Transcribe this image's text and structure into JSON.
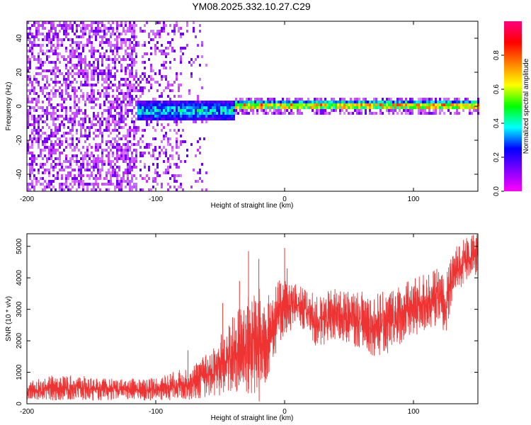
{
  "title": "YM08.2025.332.10.27.C29",
  "chart_data": [
    {
      "type": "heatmap",
      "xlabel": "Height of straight line (km)",
      "ylabel": "Frequency (Hz)",
      "xlim": [
        -200,
        150
      ],
      "ylim": [
        -50,
        50
      ],
      "xticks": [
        -200,
        -100,
        0,
        100
      ],
      "xtick_labels": [
        "-200",
        "-100",
        "0",
        "100"
      ],
      "yticks": [
        -40,
        -20,
        0,
        20,
        40
      ],
      "ytick_labels": [
        "-40",
        "-20",
        "0",
        "20",
        "40"
      ],
      "colorbar": {
        "label": "Normalized spectral amplitude",
        "range": [
          0,
          1
        ],
        "ticks": [
          0,
          0.2,
          0.4,
          0.6,
          0.8
        ],
        "tick_labels": [
          "0.0",
          "0.2",
          "0.4",
          "0.6",
          "0.8"
        ],
        "colors": [
          "#ff00ff",
          "#8000ff",
          "#0000ff",
          "#00ffff",
          "#00ff00",
          "#ffff00",
          "#ff8000",
          "#ff0000",
          "#ff0080"
        ]
      },
      "description_regions": [
        {
          "x_range": [
            -200,
            -70
          ],
          "freq_range": [
            -50,
            50
          ],
          "amplitude": 0.05
        },
        {
          "x_range": [
            -115,
            -40
          ],
          "freq_range": [
            -10,
            6
          ],
          "amplitude": 0.35
        },
        {
          "x_range": [
            -40,
            150
          ],
          "freq_range": [
            -2,
            4
          ],
          "amplitude": 0.8
        }
      ]
    },
    {
      "type": "line",
      "xlabel": "Height of straight line (km)",
      "ylabel": "SNR (10 * v/v)",
      "xlim": [
        -200,
        150
      ],
      "ylim": [
        0,
        5400
      ],
      "xticks": [
        -200,
        -100,
        0,
        100
      ],
      "xtick_labels": [
        "-200",
        "-100",
        "0",
        "100"
      ],
      "yticks": [
        0,
        1000,
        2000,
        3000,
        4000,
        5000
      ],
      "ytick_labels": [
        "0",
        "1000",
        "2000",
        "3000",
        "4000",
        "5000"
      ],
      "line_color": "#ee3333",
      "envelope": {
        "x": [
          -200,
          -180,
          -160,
          -140,
          -120,
          -100,
          -80,
          -70,
          -60,
          -50,
          -40,
          -30,
          -20,
          -15,
          -10,
          -5,
          0,
          10,
          20,
          25,
          30,
          40,
          50,
          60,
          70,
          80,
          90,
          100,
          110,
          120,
          125,
          130,
          140,
          150
        ],
        "lower": [
          100,
          100,
          100,
          100,
          100,
          100,
          100,
          150,
          200,
          250,
          300,
          300,
          0,
          600,
          1200,
          1800,
          2200,
          2400,
          2200,
          1600,
          1800,
          2000,
          1900,
          1700,
          1500,
          1500,
          1900,
          2100,
          2300,
          2500,
          2000,
          3200,
          3900,
          4100
        ],
        "upper": [
          700,
          900,
          900,
          800,
          800,
          850,
          1100,
          1300,
          1600,
          2200,
          2800,
          3400,
          3700,
          3400,
          3600,
          3900,
          4000,
          3800,
          3600,
          3400,
          3500,
          3700,
          3600,
          3600,
          3500,
          3600,
          3800,
          4000,
          4200,
          4300,
          4000,
          4900,
          5300,
          5400
        ]
      },
      "spikes": [
        {
          "x": -75,
          "y": 1700
        },
        {
          "x": -48,
          "y": 3200
        },
        {
          "x": -35,
          "y": 3900
        },
        {
          "x": -28,
          "y": 4850
        },
        {
          "x": -20,
          "y": 4600
        },
        {
          "x": 0,
          "y": 4950
        },
        {
          "x": 2,
          "y": 4300
        }
      ]
    }
  ]
}
